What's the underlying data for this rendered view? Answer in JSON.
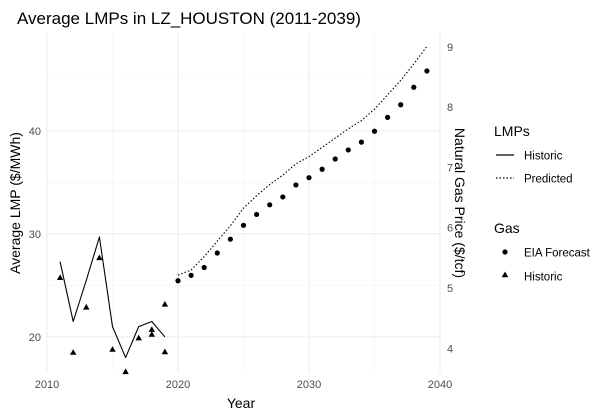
{
  "chart_data": {
    "type": "line",
    "title": "Average LMPs in LZ_HOUSTON (2011-2039)",
    "xlabel": "Year",
    "ylabel": "Average LMP ($/MWh)",
    "y2label": "Natural Gas Price ($/tcf)",
    "xlim": [
      2010,
      2040
    ],
    "ylim": [
      16.5,
      49.5
    ],
    "y2lim": [
      3.59,
      9.23
    ],
    "x_ticks": [
      "2010",
      "2020",
      "2030",
      "2040"
    ],
    "y_ticks": [
      "20",
      "30",
      "40"
    ],
    "y2_ticks": [
      "4",
      "5",
      "6",
      "7",
      "8",
      "9"
    ],
    "grid": true,
    "legend_position": "right",
    "lmp_series": [
      {
        "name": "Historic",
        "linetype": "solid",
        "x": [
          2011,
          2012,
          2013,
          2014,
          2015,
          2016,
          2017,
          2018,
          2019
        ],
        "y": [
          27.3,
          21.5,
          25.5,
          29.7,
          21.0,
          18.0,
          21.0,
          21.5,
          20.0
        ]
      },
      {
        "name": "Predicted",
        "linetype": "dotted",
        "x": [
          2020,
          2021,
          2022,
          2023,
          2024,
          2025,
          2026,
          2027,
          2028,
          2029,
          2030,
          2031,
          2032,
          2033,
          2034,
          2035,
          2036,
          2037,
          2038,
          2039
        ],
        "y": [
          26.0,
          26.5,
          27.8,
          29.3,
          30.8,
          32.5,
          33.7,
          34.8,
          35.7,
          36.8,
          37.5,
          38.4,
          39.3,
          40.2,
          41.0,
          42.1,
          43.5,
          44.9,
          46.5,
          48.2
        ]
      }
    ],
    "gas_series": [
      {
        "name": "EIA Forecast",
        "shape": "circle",
        "x": [
          2020,
          2021,
          2022,
          2023,
          2024,
          2025,
          2026,
          2027,
          2028,
          2029,
          2030,
          2031,
          2032,
          2033,
          2034,
          2035,
          2036,
          2037,
          2038,
          2039
        ],
        "y": [
          5.12,
          5.21,
          5.34,
          5.58,
          5.81,
          6.04,
          6.22,
          6.38,
          6.51,
          6.71,
          6.83,
          6.97,
          7.14,
          7.29,
          7.42,
          7.6,
          7.83,
          8.04,
          8.33,
          8.6
        ]
      },
      {
        "name": "Historic",
        "shape": "triangle",
        "x": [
          2011,
          2012,
          2013,
          2014,
          2015,
          2016,
          2017,
          2018,
          2018,
          2019,
          2019
        ],
        "y": [
          5.17,
          3.93,
          4.68,
          5.5,
          3.98,
          3.61,
          4.17,
          4.23,
          4.31,
          3.94,
          4.73
        ]
      }
    ],
    "legend": {
      "lmps_title": "LMPs",
      "lmps_items": [
        "Historic",
        "Predicted"
      ],
      "gas_title": "Gas",
      "gas_items": [
        "EIA Forecast",
        "Historic"
      ]
    },
    "colors": {
      "line": "#000000",
      "point": "#000000",
      "grid": "#ebebeb",
      "tick_text": "#4d4d4d"
    }
  }
}
